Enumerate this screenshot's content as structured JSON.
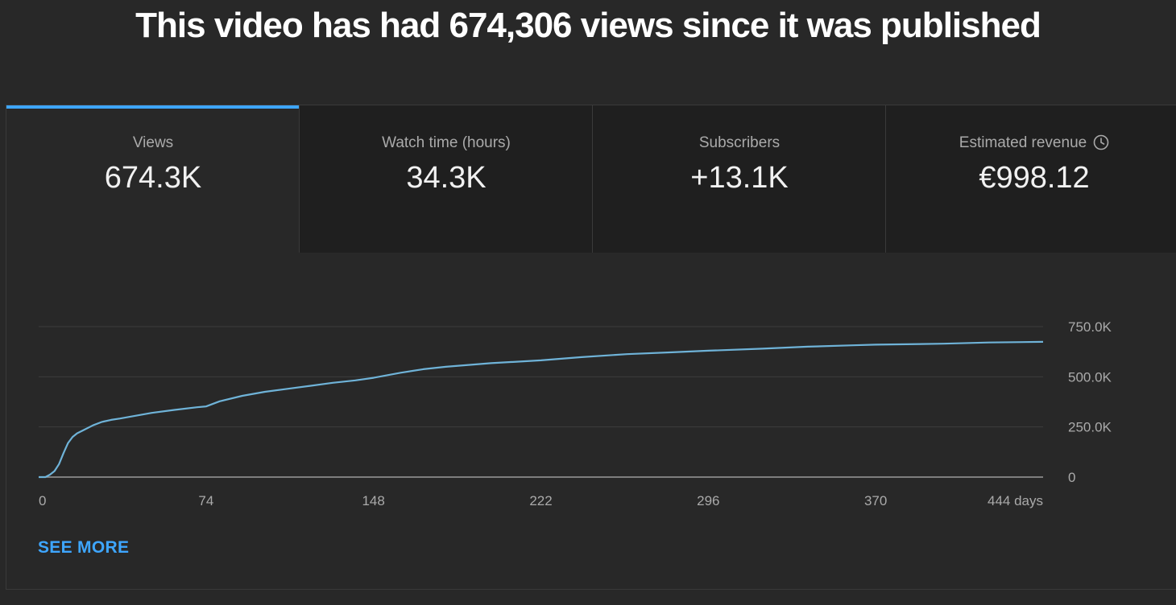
{
  "headline": "This video has had 674,306 views since it was published",
  "tabs": [
    {
      "label": "Views",
      "value": "674.3K",
      "selected": true
    },
    {
      "label": "Watch time (hours)",
      "value": "34.3K",
      "selected": false
    },
    {
      "label": "Subscribers",
      "value": "+13.1K",
      "selected": false
    },
    {
      "label": "Estimated revenue",
      "value": "€998.12",
      "selected": false,
      "icon": "clock-icon"
    }
  ],
  "see_more_label": "SEE MORE",
  "colors": {
    "accent": "#3ea6ff",
    "line": "#6fb3d8",
    "background": "#282828",
    "tab_inactive": "#1f1f1f"
  },
  "chart_data": {
    "type": "line",
    "title": "",
    "xlabel": "",
    "ylabel": "",
    "x_unit": "days",
    "xlim": [
      0,
      444
    ],
    "ylim": [
      0,
      750000
    ],
    "x_ticks": [
      "0",
      "74",
      "148",
      "222",
      "296",
      "370",
      "444 days"
    ],
    "y_ticks": [
      "750.0K",
      "500.0K",
      "250.0K",
      "0"
    ],
    "grid": true,
    "series": [
      {
        "x": [
          0,
          3,
          5,
          7,
          9,
          11,
          13,
          15,
          17,
          20,
          24,
          28,
          32,
          36,
          40,
          50,
          60,
          70,
          74,
          80,
          90,
          100,
          110,
          120,
          130,
          140,
          148,
          160,
          170,
          180,
          200,
          222,
          240,
          260,
          280,
          296,
          320,
          340,
          360,
          370,
          400,
          420,
          444
        ],
        "y": [
          0,
          0,
          12000,
          30000,
          65000,
          120000,
          170000,
          200000,
          218000,
          235000,
          258000,
          275000,
          285000,
          292000,
          300000,
          320000,
          335000,
          348000,
          352000,
          378000,
          405000,
          425000,
          440000,
          455000,
          470000,
          482000,
          495000,
          520000,
          538000,
          550000,
          568000,
          582000,
          598000,
          613000,
          622000,
          630000,
          640000,
          650000,
          657000,
          660000,
          665000,
          671000,
          674306
        ]
      }
    ]
  }
}
